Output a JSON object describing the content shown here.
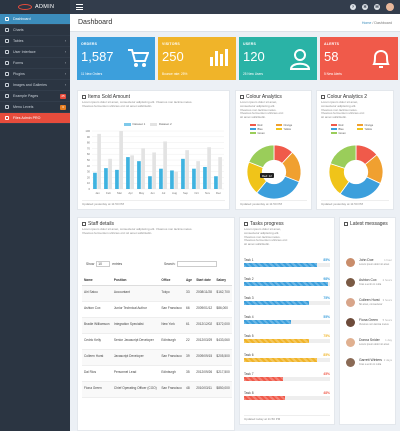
{
  "app": {
    "name": "ADMIN"
  },
  "topbar": {
    "icons": [
      "help-icon",
      "gear-icon",
      "mail-icon",
      "user-icon"
    ]
  },
  "sidebar": {
    "items": [
      {
        "label": "Dashboard",
        "icon": "dashboard-icon",
        "active": true
      },
      {
        "label": "Charts",
        "icon": "chart-icon"
      },
      {
        "label": "Tables",
        "icon": "table-icon",
        "chevron": true
      },
      {
        "label": "User Interface",
        "icon": "ui-icon",
        "chevron": true
      },
      {
        "label": "Forms",
        "icon": "form-icon",
        "chevron": true
      },
      {
        "label": "Plugins",
        "icon": "plugin-icon",
        "chevron": true
      },
      {
        "label": "Images and Galleries",
        "icon": "image-icon",
        "chevron": true
      },
      {
        "label": "Example Pages",
        "icon": "page-icon",
        "badge": "25",
        "badge_color": "#e74c3c"
      },
      {
        "label": "Menu Levels",
        "icon": "menu-icon",
        "badge": "3",
        "badge_color": "#e67e22"
      },
      {
        "label": "Files Admin PRO",
        "icon": "folder-icon",
        "highlight": true
      }
    ]
  },
  "header": {
    "title": "Dashboard",
    "crumb_home": "Home",
    "crumb_sep": "/",
    "crumb_current": "Dashboard"
  },
  "stats": [
    {
      "label": "ORDERS",
      "value": "1,587",
      "sub": "11 New Orders",
      "color": "#3c9fdc",
      "icon": "cart-icon"
    },
    {
      "label": "VISITORS",
      "value": "250",
      "sub": "Bounce rate: 25%",
      "color": "#f0b429",
      "icon": "bar-chart-icon"
    },
    {
      "label": "USERS",
      "value": "120",
      "sub": "25 New Users",
      "color": "#2ab3a6",
      "icon": "user-icon"
    },
    {
      "label": "ALERTS",
      "value": "58",
      "sub": "5 New Alerts",
      "color": "#f05a4a",
      "icon": "bell-icon"
    }
  ],
  "items_sold": {
    "title": "Items Sold Amount",
    "desc1": "Lorem ipsum dolor sit amet, consectetur adipiscing elit. Vivamus non lacinia metus.",
    "desc2": "Vivamus fermentum ultricies orci sit amet sollicitudin.",
    "footer": "Updated yesterday at 11:50 PM"
  },
  "colour_analytics": {
    "title": "Colour Analytics",
    "desc1": "Lorem ipsum dolor sit amet,",
    "desc2": "consectetur adipiscing elit.",
    "desc3": "Vivamus non lacinia metus.",
    "desc4": "Vivamus fermentum ultricies orci",
    "desc5": "sit amet sollicitudin.",
    "tooltip": "Red: 12",
    "footer": "Updated yesterday at 11:50 PM"
  },
  "colour_analytics_2": {
    "title": "Colour Analytics 2",
    "desc1": "Lorem ipsum dolor sit amet,",
    "desc2": "consectetur adipiscing elit.",
    "desc3": "Vivamus non lacinia metus.",
    "desc4": "Vivamus fermentum ultricies orci",
    "desc5": "sit amet sollicitudin.",
    "footer": "Updated yesterday at 11:50 PM"
  },
  "chart_data": [
    {
      "type": "bar",
      "categories": [
        "Jan",
        "Feb",
        "Mar",
        "Apr",
        "May",
        "Jun",
        "Jul",
        "Aug",
        "Sep",
        "Oct",
        "Nov",
        "Dec"
      ],
      "series": [
        {
          "name": "Dataset 1",
          "values": [
            28,
            36,
            33,
            55,
            48,
            22,
            35,
            32,
            52,
            35,
            38,
            22
          ],
          "color": "#3fb3e0"
        },
        {
          "name": "Dataset 2",
          "values": [
            95,
            52,
            100,
            58,
            70,
            63,
            82,
            30,
            67,
            48,
            72,
            55
          ],
          "color": "#e3e3e3"
        }
      ],
      "ylim": [
        0,
        100
      ],
      "ticks": [
        "100",
        "90",
        "80",
        "70",
        "60",
        "50",
        "40",
        "30",
        "20",
        "10",
        "0"
      ]
    },
    {
      "type": "pie",
      "labels": [
        "Red",
        "Orange",
        "Blue",
        "Yellow",
        "Green"
      ],
      "values": [
        12,
        19,
        30,
        20,
        19
      ],
      "colors": [
        "#f05a4a",
        "#f0a030",
        "#3c9fdc",
        "#f0c419",
        "#9acd5a"
      ]
    },
    {
      "type": "pie",
      "labels": [
        "Red",
        "Orange",
        "Blue",
        "Yellow",
        "Green"
      ],
      "values": [
        14,
        18,
        28,
        20,
        20
      ],
      "colors": [
        "#f05a4a",
        "#f0a030",
        "#3c9fdc",
        "#f0c419",
        "#9acd5a"
      ]
    }
  ],
  "staff": {
    "title": "Staff details",
    "desc1": "Lorem ipsum dolor sit amet, consectetur adipiscing elit. Vivamus non lacinia metus.",
    "desc2": "Vivamus fermentum ultricies orci sit amet sollicitudin.",
    "show_label": "Show",
    "show_value": "10",
    "entries_label": "entries",
    "search_label": "Search:",
    "columns": [
      "Name",
      "Position",
      "Office",
      "Age",
      "Start date",
      "Salary"
    ],
    "rows": [
      [
        "Airi Satou",
        "Accountant",
        "Tokyo",
        "33",
        "2008/11/28",
        "$162,700"
      ],
      [
        "Ashton Cox",
        "Junior Technical Author",
        "San Francisco",
        "66",
        "2009/01/12",
        "$86,000"
      ],
      [
        "Bradie Williamson",
        "Integration Specialist",
        "New York",
        "61",
        "2012/12/02",
        "$372,000"
      ],
      [
        "Cedric Kelly",
        "Senior Javascript Developer",
        "Edinburgh",
        "22",
        "2012/03/29",
        "$433,060"
      ],
      [
        "Colleen Hurst",
        "Javascript Developer",
        "San Francisco",
        "39",
        "2009/09/15",
        "$205,500"
      ],
      [
        "Dai Rios",
        "Personnel Lead",
        "Edinburgh",
        "35",
        "2012/09/26",
        "$217,500"
      ],
      [
        "Fiona Green",
        "Chief Operating Officer (COO)",
        "San Francisco",
        "48",
        "2010/03/11",
        "$850,000"
      ]
    ]
  },
  "tasks": {
    "title": "Tasks progress",
    "desc1": "Lorem ipsum dolor sit amet,",
    "desc2": "consectetur adipiscing elit.",
    "desc3": "Vivamus non lacinia metus.",
    "desc4": "Vivamus fermentum ultricies orci",
    "desc5": "sit amet sollicitudin.",
    "items": [
      {
        "label": "Task 1",
        "pct": "85%",
        "value": 0.85,
        "color": "#3c9fdc"
      },
      {
        "label": "Task 2",
        "pct": "98%",
        "value": 0.98,
        "color": "#3c9fdc"
      },
      {
        "label": "Task 3",
        "pct": "75%",
        "value": 0.75,
        "color": "#3c9fdc"
      },
      {
        "label": "Task 4",
        "pct": "55%",
        "value": 0.55,
        "color": "#3c9fdc"
      },
      {
        "label": "Task 5",
        "pct": "75%",
        "value": 0.75,
        "color": "#f0b429"
      },
      {
        "label": "Task 6",
        "pct": "85%",
        "value": 0.85,
        "color": "#f0b429"
      },
      {
        "label": "Task 7",
        "pct": "45%",
        "value": 0.45,
        "color": "#f05a4a"
      },
      {
        "label": "Task 8",
        "pct": "48%",
        "value": 0.48,
        "color": "#f05a4a"
      }
    ],
    "footer": "Updated today at 11:50 PM"
  },
  "messages": {
    "title": "Latest messages",
    "items": [
      {
        "name": "John Doe",
        "text": "Lorem ipsum dolor sit amet",
        "time": "1 hour",
        "avatar": "#c98d6b"
      },
      {
        "name": "Ashton Cox",
        "text": "Cras a enim in nulla",
        "time": "2 hours",
        "avatar": "#7a5a44"
      },
      {
        "name": "Colleen Hurst",
        "text": "Sit amet, consectetur",
        "time": "3 hours",
        "avatar": "#d8a58a"
      },
      {
        "name": "Fiona Green",
        "text": "Vivamus non lacinia metus",
        "time": "5 hours",
        "avatar": "#6d4b3a"
      },
      {
        "name": "Donna Snider",
        "text": "Lorem ipsum dolor sit amet",
        "time": "1 day",
        "avatar": "#e0b090"
      },
      {
        "name": "Garrett Winters",
        "text": "Cras a enim in nulla",
        "time": "2 days",
        "avatar": "#8a6a55"
      }
    ]
  }
}
